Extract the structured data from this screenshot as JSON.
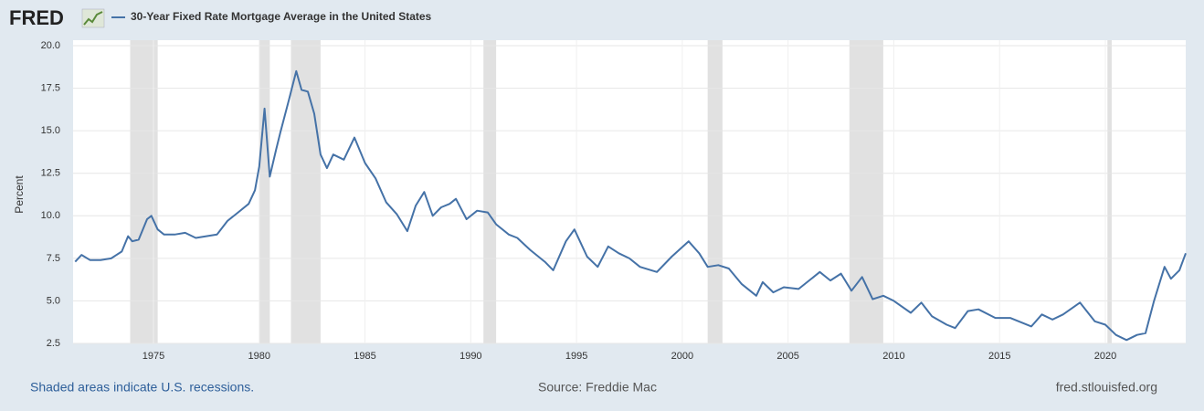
{
  "chart_data": {
    "type": "line",
    "brand": "FRED",
    "title": "30-Year Fixed Rate Mortgage Average in the United States",
    "y_label": "Percent",
    "note": "Shaded areas indicate U.S. recessions.",
    "source": "Source: Freddie Mac",
    "site": "fred.stlouisfed.org",
    "xlim": [
      1971.2,
      2023.8
    ],
    "xticks": [
      1975,
      1980,
      1985,
      1990,
      1995,
      2000,
      2005,
      2010,
      2015,
      2020
    ],
    "ylim": [
      2.5,
      20
    ],
    "yticks": [
      2.5,
      {
        "value": 5,
        "label": "5.0"
      },
      7.5,
      {
        "value": 10,
        "label": "10.0"
      },
      12.5,
      {
        "value": 15,
        "label": "15.0"
      },
      17.5,
      {
        "value": 20,
        "label": "20.0"
      }
    ],
    "grid": true,
    "recessions": [
      [
        1973.9,
        1975.2
      ],
      [
        1980.0,
        1980.5
      ],
      [
        1981.5,
        1982.9
      ],
      [
        1990.6,
        1991.2
      ],
      [
        2001.2,
        2001.9
      ],
      [
        2007.9,
        2009.5
      ],
      [
        2020.1,
        2020.3
      ]
    ],
    "recession_color": "#e1e1e1",
    "x": [
      1971.3,
      1971.6,
      1972.0,
      1972.5,
      1973.0,
      1973.5,
      1973.8,
      1974.0,
      1974.3,
      1974.7,
      1974.9,
      1975.2,
      1975.5,
      1976.0,
      1976.5,
      1977.0,
      1977.5,
      1978.0,
      1978.5,
      1979.0,
      1979.5,
      1979.8,
      1980.0,
      1980.25,
      1980.5,
      1980.8,
      1981.0,
      1981.4,
      1981.75,
      1982.0,
      1982.3,
      1982.6,
      1982.9,
      1983.2,
      1983.5,
      1984.0,
      1984.5,
      1985.0,
      1985.5,
      1986.0,
      1986.5,
      1987.0,
      1987.4,
      1987.8,
      1988.2,
      1988.6,
      1989.0,
      1989.3,
      1989.8,
      1990.3,
      1990.8,
      1991.2,
      1991.8,
      1992.2,
      1992.8,
      1993.5,
      1993.9,
      1994.5,
      1994.9,
      1995.5,
      1996.0,
      1996.5,
      1997.0,
      1997.5,
      1998.0,
      1998.8,
      1999.5,
      2000.3,
      2000.8,
      2001.2,
      2001.7,
      2002.2,
      2002.8,
      2003.5,
      2003.8,
      2004.3,
      2004.8,
      2005.5,
      2006.5,
      2007.0,
      2007.5,
      2008.0,
      2008.5,
      2009.0,
      2009.5,
      2010.0,
      2010.8,
      2011.3,
      2011.8,
      2012.5,
      2012.9,
      2013.5,
      2014.0,
      2014.8,
      2015.5,
      2016.5,
      2017.0,
      2017.5,
      2018.0,
      2018.8,
      2019.5,
      2020.0,
      2020.5,
      2021.0,
      2021.5,
      2021.9,
      2022.3,
      2022.8,
      2023.1,
      2023.5,
      2023.8
    ],
    "series": [
      {
        "name": "30-Year Fixed Rate Mortgage Average in the United States",
        "color": "#4572a7",
        "values": [
          7.3,
          7.7,
          7.4,
          7.4,
          7.5,
          7.9,
          8.8,
          8.5,
          8.6,
          9.8,
          10.0,
          9.2,
          8.9,
          8.9,
          9.0,
          8.7,
          8.8,
          8.9,
          9.7,
          10.2,
          10.7,
          11.5,
          12.9,
          16.3,
          12.3,
          13.9,
          14.9,
          16.8,
          18.5,
          17.4,
          17.3,
          16.0,
          13.6,
          12.8,
          13.6,
          13.3,
          14.6,
          13.1,
          12.2,
          10.8,
          10.1,
          9.1,
          10.6,
          11.4,
          10.0,
          10.5,
          10.7,
          11.0,
          9.8,
          10.3,
          10.2,
          9.5,
          8.9,
          8.7,
          8.0,
          7.3,
          6.8,
          8.5,
          9.2,
          7.6,
          7.0,
          8.2,
          7.8,
          7.5,
          7.0,
          6.7,
          7.6,
          8.5,
          7.8,
          7.0,
          7.1,
          6.9,
          6.0,
          5.3,
          6.1,
          5.5,
          5.8,
          5.7,
          6.7,
          6.2,
          6.6,
          5.6,
          6.4,
          5.1,
          5.3,
          5.0,
          4.3,
          4.9,
          4.1,
          3.6,
          3.4,
          4.4,
          4.5,
          4.0,
          4.0,
          3.5,
          4.2,
          3.9,
          4.2,
          4.9,
          3.8,
          3.6,
          3.0,
          2.7,
          3.0,
          3.1,
          5.0,
          7.0,
          6.3,
          6.8,
          7.8
        ]
      }
    ]
  }
}
